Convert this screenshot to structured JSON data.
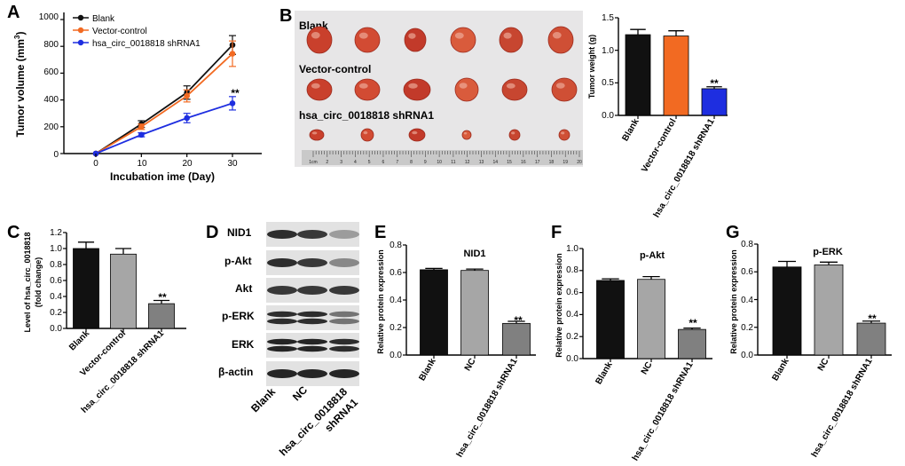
{
  "colors": {
    "black": "#111111",
    "orange": "#f26a22",
    "blue": "#1e2ee0",
    "gray_light": "#a6a6a6",
    "gray_dark": "#808080"
  },
  "panels": {
    "A": "A",
    "B": "B",
    "C": "C",
    "D": "D",
    "E": "E",
    "F": "F",
    "G": "G"
  },
  "photo": {
    "rows": [
      "Blank",
      "Vector-control",
      "hsa_circ_0018818 shRNA1"
    ],
    "ruler_labels": [
      "1cm",
      "2",
      "3",
      "4",
      "5",
      "6",
      "7",
      "8",
      "9",
      "10",
      "11",
      "12",
      "13",
      "14",
      "15",
      "16",
      "17",
      "18",
      "19",
      "20"
    ]
  },
  "western": {
    "rows": [
      "NID1",
      "p-Akt",
      "Akt",
      "p-ERK",
      "ERK",
      "β-actin"
    ],
    "lanes": [
      "Blank",
      "NC",
      "hsa_circ_0018818 shRNA1"
    ],
    "lane3_line1": "hsa_circ_0018818",
    "lane3_line2": "shRNA1"
  },
  "chart_data": [
    {
      "id": "A",
      "type": "line",
      "x": [
        0,
        10,
        20,
        30
      ],
      "series": [
        {
          "name": "Blank",
          "color": "#111111",
          "values": [
            0,
            220,
            455,
            810
          ],
          "err": [
            0,
            25,
            50,
            70
          ]
        },
        {
          "name": "Vector-control",
          "color": "#f26a22",
          "values": [
            0,
            200,
            430,
            745
          ],
          "err": [
            0,
            20,
            45,
            95
          ]
        },
        {
          "name": "hsa_circ_0018818 shRNA1",
          "color": "#1e2ee0",
          "values": [
            0,
            140,
            265,
            375
          ],
          "err": [
            0,
            15,
            35,
            50
          ]
        }
      ],
      "xticks": [
        "0",
        "10",
        "20",
        "30"
      ],
      "yticks": [
        "0",
        "200",
        "400",
        "600",
        "800",
        "1000"
      ],
      "xlabel": "Incubation ime (Day)",
      "ylabel": "Tumor volume (mm³)",
      "ylabel_main": "Tumor volume (mm",
      "ylabel_sup": "3",
      "ylabel_end": ")",
      "ylim": [
        0,
        1000
      ],
      "annotation": "**"
    },
    {
      "id": "B",
      "type": "bar",
      "categories": [
        "Blank",
        "Vector-control",
        "hsa_circ_0018818 shRNA1"
      ],
      "values": [
        1.24,
        1.22,
        0.41
      ],
      "err": [
        0.08,
        0.08,
        0.03
      ],
      "colors": [
        "#111111",
        "#f26a22",
        "#1e2ee0"
      ],
      "yticks": [
        "0.0",
        "0.5",
        "1.0",
        "1.5"
      ],
      "ylabel": "Tumor weight (g)",
      "ylim": [
        0,
        1.5
      ],
      "annotation": "**"
    },
    {
      "id": "C",
      "type": "bar",
      "categories": [
        "Blank",
        "Vector-control",
        "hsa_circ_0018818 shRNA1"
      ],
      "values": [
        1.0,
        0.93,
        0.31
      ],
      "err": [
        0.08,
        0.07,
        0.04
      ],
      "colors": [
        "#111111",
        "#a6a6a6",
        "#808080"
      ],
      "yticks": [
        "0.0",
        "0.2",
        "0.4",
        "0.6",
        "0.8",
        "1.0",
        "1.2"
      ],
      "ylabel_line1": "Level of hsa_circ_0018818",
      "ylabel_line2": "(fold change)",
      "ylim": [
        0,
        1.2
      ],
      "annotation": "**"
    },
    {
      "id": "E",
      "type": "bar",
      "title": "NID1",
      "categories": [
        "Blank",
        "NC",
        "hsa_circ_0018818 shRNA1"
      ],
      "values": [
        0.62,
        0.615,
        0.23
      ],
      "err": [
        0.01,
        0.01,
        0.015
      ],
      "colors": [
        "#111111",
        "#a6a6a6",
        "#808080"
      ],
      "yticks": [
        "0.0",
        "0.2",
        "0.4",
        "0.6",
        "0.8"
      ],
      "ylabel": "Relative protein expression",
      "ylim": [
        0,
        0.8
      ],
      "annotation": "**"
    },
    {
      "id": "F",
      "type": "bar",
      "title": "p-Akt",
      "categories": [
        "Blank",
        "NC",
        "hsa_circ_0018818 shRNA1"
      ],
      "values": [
        0.71,
        0.72,
        0.265
      ],
      "err": [
        0.015,
        0.025,
        0.012
      ],
      "colors": [
        "#111111",
        "#a6a6a6",
        "#808080"
      ],
      "yticks": [
        "0.0",
        "0.2",
        "0.4",
        "0.6",
        "0.8",
        "1.0"
      ],
      "ylabel": "Relative protein expression",
      "ylim": [
        0,
        1.0
      ],
      "annotation": "**"
    },
    {
      "id": "G",
      "type": "bar",
      "title": "p-ERK",
      "categories": [
        "Blank",
        "NC",
        "hsa_circ_0018818 shRNA1"
      ],
      "values": [
        0.635,
        0.65,
        0.23
      ],
      "err": [
        0.04,
        0.02,
        0.015
      ],
      "colors": [
        "#111111",
        "#a6a6a6",
        "#808080"
      ],
      "yticks": [
        "0.0",
        "0.2",
        "0.4",
        "0.6",
        "0.8"
      ],
      "ylabel": "Relative protein expression",
      "ylim": [
        0,
        0.8
      ],
      "annotation": "**"
    }
  ]
}
